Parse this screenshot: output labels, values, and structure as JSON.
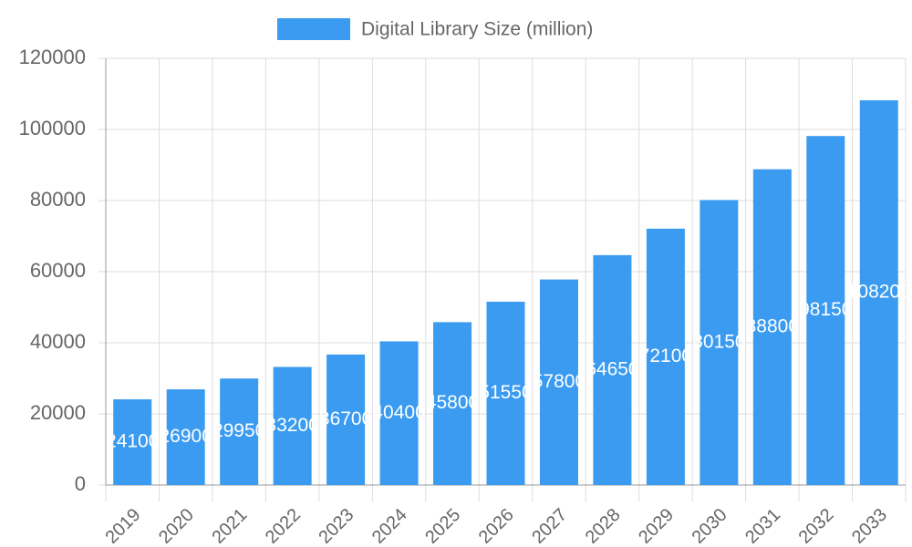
{
  "chart_data": {
    "type": "bar",
    "legend": "top",
    "grid": true,
    "categories": [
      "2019",
      "2020",
      "2021",
      "2022",
      "2023",
      "2024",
      "2025",
      "2026",
      "2027",
      "2028",
      "2029",
      "2030",
      "2031",
      "2032",
      "2033"
    ],
    "series": [
      {
        "name": "Digital Library Size (million)",
        "color": "#3a9bf0",
        "values": [
          24100,
          26900,
          29950,
          33200,
          36700,
          40400,
          45800,
          51550,
          57800,
          64650,
          72100,
          80150,
          88800,
          98150,
          108200
        ]
      }
    ],
    "ylim": [
      0,
      120000
    ],
    "yticks": [
      0,
      20000,
      40000,
      60000,
      80000,
      100000,
      120000
    ]
  }
}
